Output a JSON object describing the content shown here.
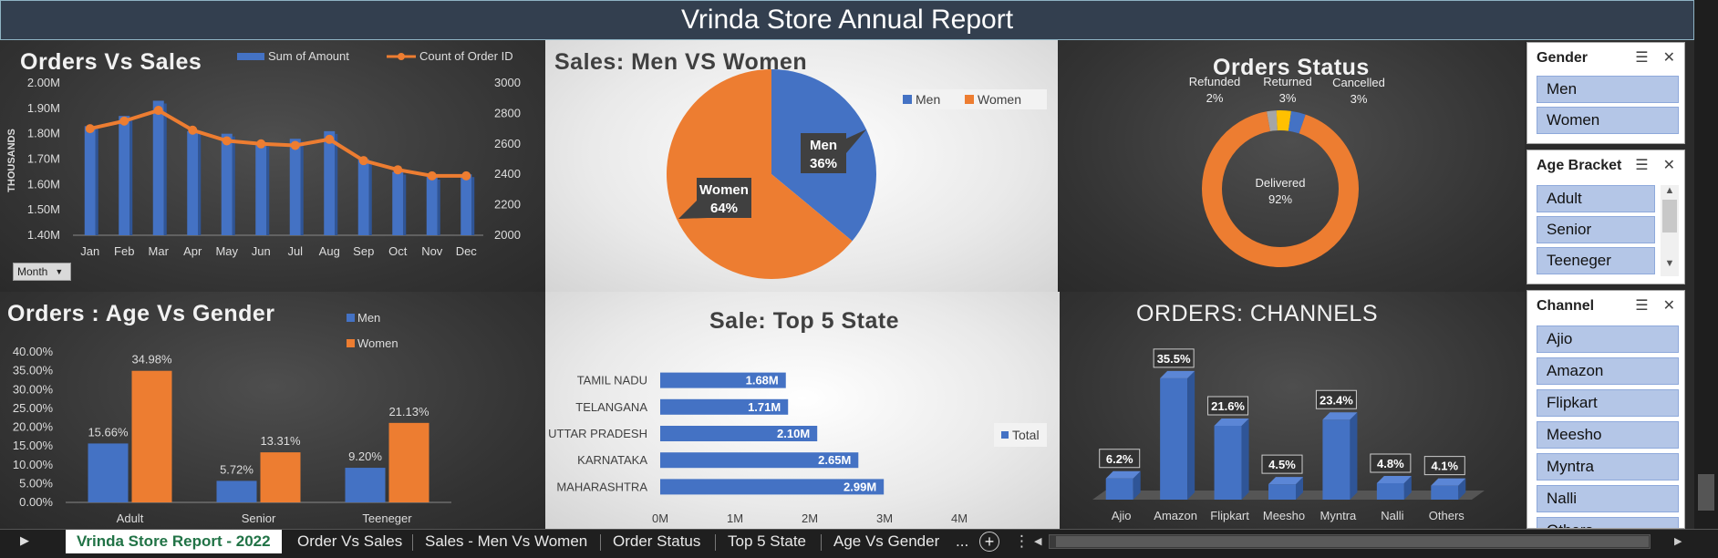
{
  "report_title": "Vrinda Store Annual Report",
  "orders_vs_sales": {
    "title": "Orders Vs Sales",
    "legend": [
      "Sum of Amount",
      "Count of Order ID"
    ],
    "y_axis_unit": "THOUSANDS",
    "left_ticks": [
      "2.00M",
      "1.90M",
      "1.80M",
      "1.70M",
      "1.60M",
      "1.50M",
      "1.40M"
    ],
    "right_ticks": [
      "3000",
      "2800",
      "2600",
      "2400",
      "2200",
      "2000"
    ],
    "month_filter": "Month"
  },
  "sales_men_women": {
    "title": "Sales: Men VS Women",
    "legend": [
      "Men",
      "Women"
    ],
    "men_label": "Men",
    "men_pct": "36%",
    "women_label": "Women",
    "women_pct": "64%"
  },
  "orders_status": {
    "title": "Orders Status",
    "labels": [
      {
        "name": "Refunded",
        "pct": "2%"
      },
      {
        "name": "Returned",
        "pct": "3%"
      },
      {
        "name": "Cancelled",
        "pct": "3%"
      },
      {
        "name": "Delivered",
        "pct": "92%"
      }
    ]
  },
  "age_vs_gender": {
    "title": "Orders : Age Vs Gender",
    "legend": [
      "Men",
      "Women"
    ],
    "ticks": [
      "40.00%",
      "35.00%",
      "30.00%",
      "25.00%",
      "20.00%",
      "15.00%",
      "10.00%",
      "5.00%",
      "0.00%"
    ]
  },
  "top5_state": {
    "title": "Sale: Top 5 State",
    "legend": "Total",
    "ticks": [
      "0M",
      "1M",
      "2M",
      "3M",
      "4M"
    ]
  },
  "channels": {
    "title": "ORDERS: CHANNELS"
  },
  "slicers": {
    "gender": {
      "title": "Gender",
      "items": [
        "Men",
        "Women"
      ]
    },
    "age": {
      "title": "Age Bracket",
      "items": [
        "Adult",
        "Senior",
        "Teeneger"
      ]
    },
    "channel": {
      "title": "Channel",
      "items": [
        "Ajio",
        "Amazon",
        "Flipkart",
        "Meesho",
        "Myntra",
        "Nalli",
        "Others"
      ]
    }
  },
  "sheet_tabs": [
    "Vrinda Store Report - 2022",
    "Order Vs Sales",
    "Sales - Men Vs Women",
    "Order Status",
    "Top 5 State",
    "Age Vs Gender",
    "..."
  ],
  "colors": {
    "blue": "#4472c4",
    "orange": "#ed7d31",
    "slicer_item": "#b4c6e7"
  },
  "chart_data": [
    {
      "type": "bar",
      "title": "Orders Vs Sales",
      "categories": [
        "Jan",
        "Feb",
        "Mar",
        "Apr",
        "May",
        "Jun",
        "Jul",
        "Aug",
        "Sep",
        "Oct",
        "Nov",
        "Dec"
      ],
      "series": [
        {
          "name": "Sum of Amount",
          "axis": "left",
          "values": [
            1.83,
            1.87,
            1.93,
            1.81,
            1.8,
            1.76,
            1.78,
            1.81,
            1.7,
            1.65,
            1.63,
            1.64
          ]
        },
        {
          "name": "Count of Order ID",
          "type": "line",
          "axis": "right",
          "values": [
            2700,
            2750,
            2820,
            2690,
            2620,
            2600,
            2590,
            2630,
            2490,
            2430,
            2390,
            2390
          ]
        }
      ],
      "ylim": [
        1.4,
        2.0
      ],
      "y2lim": [
        2000,
        3000
      ]
    },
    {
      "type": "pie",
      "title": "Sales: Men VS Women",
      "categories": [
        "Men",
        "Women"
      ],
      "values": [
        36,
        64
      ]
    },
    {
      "type": "pie",
      "title": "Orders Status",
      "categories": [
        "Refunded",
        "Returned",
        "Cancelled",
        "Delivered"
      ],
      "values": [
        2,
        3,
        3,
        92
      ]
    },
    {
      "type": "bar",
      "title": "Orders : Age Vs Gender",
      "categories": [
        "Adult",
        "Senior",
        "Teeneger"
      ],
      "series": [
        {
          "name": "Men",
          "values": [
            15.66,
            5.72,
            9.2
          ],
          "labels": [
            "15.66%",
            "5.72%",
            "9.20%"
          ]
        },
        {
          "name": "Women",
          "values": [
            34.98,
            13.31,
            21.13
          ],
          "labels": [
            "34.98%",
            "13.31%",
            "21.13%"
          ]
        }
      ],
      "ylim": [
        0,
        40
      ]
    },
    {
      "type": "bar",
      "title": "Sale: Top 5 State",
      "categories": [
        "TAMIL NADU",
        "TELANGANA",
        "UTTAR PRADESH",
        "KARNATAKA",
        "MAHARASHTRA"
      ],
      "series": [
        {
          "name": "Total",
          "values": [
            1.68,
            1.71,
            2.1,
            2.65,
            2.99
          ],
          "labels": [
            "1.68M",
            "1.71M",
            "2.10M",
            "2.65M",
            "2.99M"
          ]
        }
      ],
      "xlim": [
        0,
        4
      ]
    },
    {
      "type": "bar",
      "title": "ORDERS: CHANNELS",
      "categories": [
        "Ajio",
        "Amazon",
        "Flipkart",
        "Meesho",
        "Myntra",
        "Nalli",
        "Others"
      ],
      "values": [
        6.2,
        35.5,
        21.6,
        4.5,
        23.4,
        4.8,
        4.1
      ],
      "labels": [
        "6.2%",
        "35.5%",
        "21.6%",
        "4.5%",
        "23.4%",
        "4.8%",
        "4.1%"
      ]
    }
  ]
}
